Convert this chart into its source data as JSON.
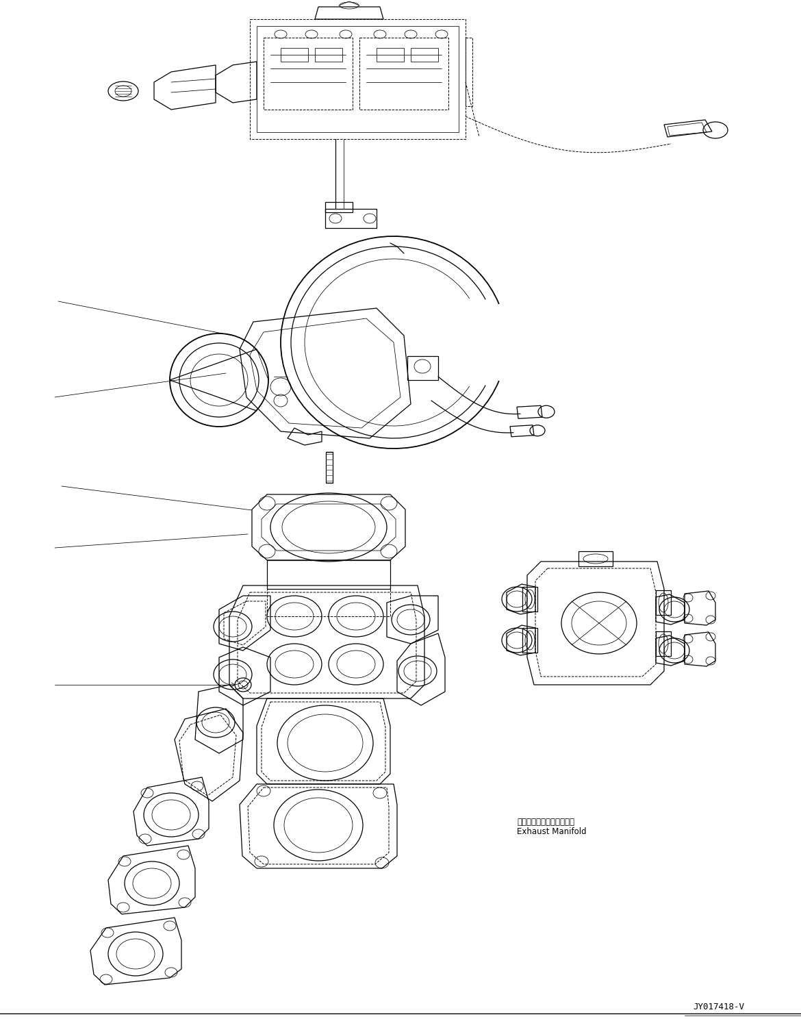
{
  "fig_width": 11.7,
  "fig_height": 14.91,
  "dpi": 100,
  "bg_color": "#ffffff",
  "lc": "#000000",
  "diagram_id": "JY017418-V",
  "label_ja": "エキゾーストマニホールド",
  "label_en": "Exhaust Manifold",
  "lw_main": 0.9,
  "lw_thin": 0.55,
  "lw_thick": 1.3,
  "lw_dash": 0.7
}
